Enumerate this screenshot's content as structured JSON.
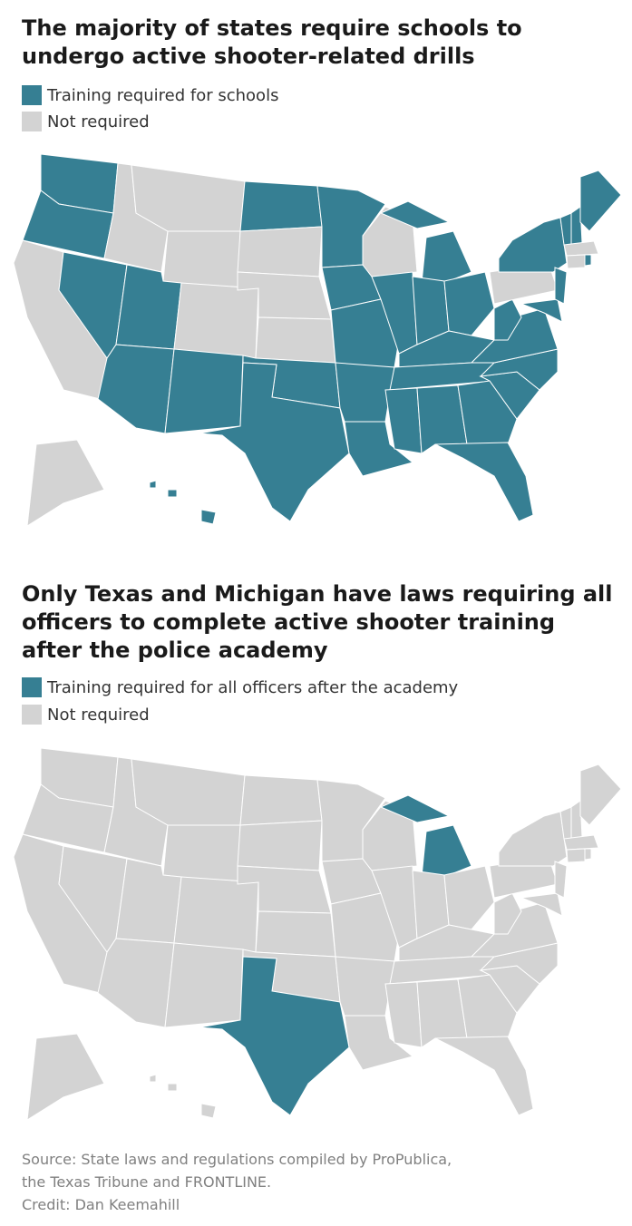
{
  "maps": [
    {
      "title": "The majority of states require schools to undergo active shooter-related drills",
      "legend": [
        {
          "label": "Training required for schools",
          "color": "#367f93"
        },
        {
          "label": "Not required",
          "color": "#d3d3d3"
        }
      ]
    },
    {
      "title": "Only Texas and Michigan have laws requiring all officers to complete active shooter training after the police academy",
      "legend": [
        {
          "label": "Training required for all officers after the academy",
          "color": "#367f93"
        },
        {
          "label": "Not required",
          "color": "#d3d3d3"
        }
      ]
    }
  ],
  "footer": [
    "Source: State laws and regulations compiled by ProPublica,",
    "the Texas Tribune and FRONTLINE.",
    "Credit: Dan Keemahill"
  ]
}
